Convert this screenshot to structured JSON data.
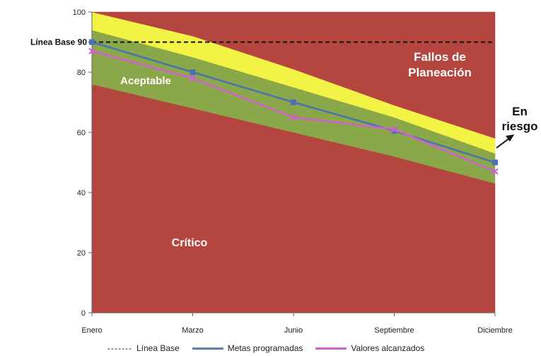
{
  "chart_data": {
    "type": "area",
    "categories": [
      "Enero",
      "Marzo",
      "Junio",
      "Septiembre",
      "Diciembre"
    ],
    "y_ticks": [
      "0",
      "20",
      "40",
      "60",
      "80",
      "100"
    ],
    "ylim": [
      0,
      100
    ],
    "grid": false,
    "legend_position": "bottom",
    "bands": [
      {
        "name": "Crítico",
        "lower": [
          0,
          0,
          0,
          0,
          0
        ],
        "upper": [
          76,
          68,
          60,
          52,
          43
        ],
        "color": "#b5453f"
      },
      {
        "name": "Aceptable",
        "lower": [
          76,
          68,
          60,
          52,
          43
        ],
        "upper": [
          94,
          85,
          75,
          65,
          53
        ],
        "color": "#8aa84a"
      },
      {
        "name": "En riesgo",
        "lower": [
          94,
          85,
          75,
          65,
          53
        ],
        "upper": [
          100,
          92,
          81,
          69,
          58
        ],
        "color": "#f3f346"
      },
      {
        "name": "Fallos de Planeación",
        "lower": [
          100,
          92,
          81,
          69,
          58
        ],
        "upper": [
          100,
          100,
          100,
          100,
          100
        ],
        "color": "#b5453f"
      }
    ],
    "baseline": {
      "label": "Línea Base 90",
      "value": 90
    },
    "series": [
      {
        "name": "Metas programadas",
        "values": [
          90,
          80,
          70,
          60.5,
          50
        ],
        "color": "#4a72b0"
      },
      {
        "name": "Valores alcanzados",
        "values": [
          87,
          78,
          65,
          61,
          47
        ],
        "color": "#d15fd1"
      }
    ],
    "region_labels": {
      "fallos_line1": "Fallos de",
      "fallos_line2": "Planeación",
      "aceptable": "Aceptable",
      "critico": "Crítico",
      "riesgo_line1": "En",
      "riesgo_line2": "riesgo"
    },
    "legend": {
      "baseline_dashes": "-------",
      "baseline": "Línea Base",
      "metas": "Metas programadas",
      "valores": "Valores alcanzados"
    }
  }
}
